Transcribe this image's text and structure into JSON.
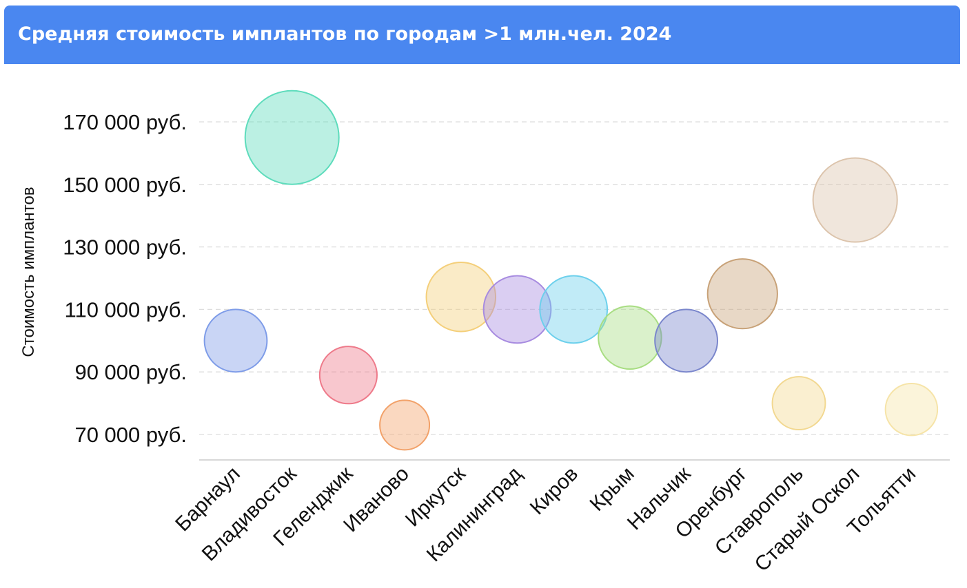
{
  "header": {
    "title": "Средняя стоимость имплантов по городам >1 млн.чел. 2024"
  },
  "chart_data": {
    "type": "scatter",
    "title": "Средняя стоимость имплантов по городам >1 млн.чел. 2024",
    "ylabel": "Стоимость имплантов",
    "xlabel": "",
    "ylim": [
      62000,
      182000
    ],
    "yticks": [
      70000,
      90000,
      110000,
      130000,
      150000,
      170000
    ],
    "ytick_labels": [
      "70 000 руб.",
      "90 000 руб.",
      "110 000 руб.",
      "130 000 руб.",
      "150 000 руб.",
      "170 000 руб."
    ],
    "grid": "horizontal-dashed",
    "categories": [
      "Барнаул",
      "Владивосток",
      "Геленджик",
      "Иваново",
      "Иркутск",
      "Калининград",
      "Киров",
      "Крым",
      "Нальчик",
      "Оренбург",
      "Ставрополь",
      "Старый Оскол",
      "Тольятти"
    ],
    "values": [
      100000,
      165000,
      89000,
      73000,
      114000,
      110000,
      110000,
      101000,
      100000,
      115000,
      80000,
      145000,
      78000
    ],
    "colors": [
      "#7e9ce8",
      "#5edcbc",
      "#ee7a8a",
      "#f2a26a",
      "#f4cf7a",
      "#a78be0",
      "#6cd0ec",
      "#a8dd82",
      "#7a86cc",
      "#c8a278",
      "#f2d890",
      "#dcc4ac",
      "#f6e4a8"
    ]
  }
}
